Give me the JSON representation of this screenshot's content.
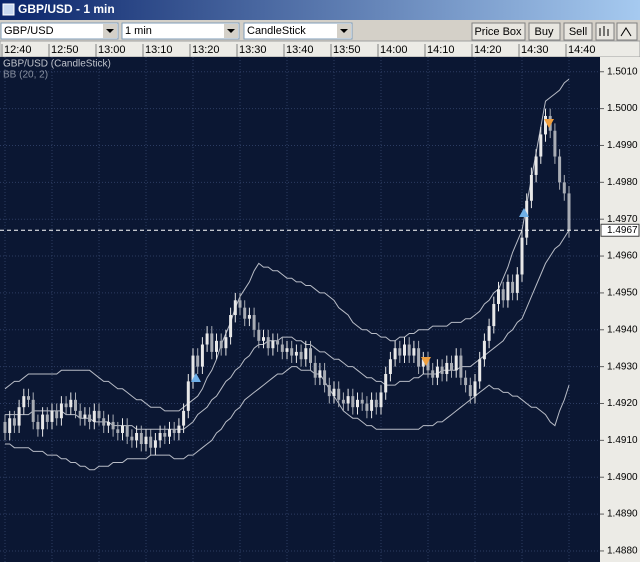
{
  "window": {
    "title": "GBP/USD - 1 min",
    "symbol": "GBP/USD",
    "interval": "1 min",
    "chart_style": "CandleStick",
    "buttons": [
      "Price Box",
      "Buy",
      "Sell"
    ]
  },
  "chart_data": {
    "type": "candlestick",
    "title": "GBP/USD (CandleStick)",
    "indicator": "BB (20, 2)",
    "categories": [
      "12:40",
      null,
      null,
      null,
      null,
      null,
      null,
      null,
      null,
      null,
      "12:50",
      null,
      null,
      null,
      null,
      null,
      null,
      null,
      null,
      null,
      "13:00",
      null,
      null,
      null,
      null,
      null,
      null,
      null,
      null,
      null,
      "13:10",
      null,
      null,
      null,
      null,
      null,
      null,
      null,
      null,
      null,
      "13:20",
      null,
      null,
      null,
      null,
      null,
      null,
      null,
      null,
      null,
      "13:30",
      null,
      null,
      null,
      null,
      null,
      null,
      null,
      null,
      null,
      "13:40",
      null,
      null,
      null,
      null,
      null,
      null,
      null,
      null,
      null,
      "13:50",
      null,
      null,
      null,
      null,
      null,
      null,
      null,
      null,
      null,
      "14:00",
      null,
      null,
      null,
      null,
      null,
      null,
      null,
      null,
      null,
      "14:10",
      null,
      null,
      null,
      null,
      null,
      null,
      null,
      null,
      null,
      "14:20",
      null,
      null,
      null,
      null,
      null,
      null,
      null,
      null,
      null,
      "14:30",
      null,
      null,
      null,
      null,
      null,
      null,
      null,
      null,
      null,
      "14:40"
    ],
    "open": [
      1.4915,
      1.4912,
      1.4916,
      1.4914,
      1.4919,
      1.4922,
      1.4921,
      1.4915,
      1.4913,
      1.4917,
      1.4915,
      1.4918,
      1.4916,
      1.492,
      1.4919,
      1.4921,
      1.4918,
      1.4916,
      1.4917,
      1.4915,
      1.4918,
      1.4916,
      1.4914,
      1.4915,
      1.4913,
      1.4912,
      1.4914,
      1.4911,
      1.491,
      1.4912,
      1.4909,
      1.4911,
      1.4908,
      1.491,
      1.4912,
      1.4911,
      1.4913,
      1.4912,
      1.4914,
      1.4918,
      1.4926,
      1.4933,
      1.493,
      1.4936,
      1.4939,
      1.4934,
      1.4937,
      1.4935,
      1.4938,
      1.4944,
      1.4948,
      1.4946,
      1.4943,
      1.4944,
      1.494,
      1.4937,
      1.4938,
      1.4935,
      1.4937,
      1.4936,
      1.4934,
      1.4935,
      1.4933,
      1.4934,
      1.4932,
      1.4935,
      1.4931,
      1.4927,
      1.4929,
      1.4925,
      1.4922,
      1.4924,
      1.4921,
      1.492,
      1.4922,
      1.4919,
      1.4921,
      1.492,
      1.4918,
      1.4921,
      1.4919,
      1.4923,
      1.4928,
      1.4932,
      1.4935,
      1.4933,
      1.4936,
      1.4933,
      1.4935,
      1.493,
      1.4932,
      1.4929,
      1.4927,
      1.493,
      1.4928,
      1.4931,
      1.4929,
      1.4933,
      1.4927,
      1.4925,
      1.4922,
      1.4926,
      1.4932,
      1.4937,
      1.4941,
      1.4947,
      1.4951,
      1.4948,
      1.4953,
      1.495,
      1.4955,
      1.4965,
      1.4975,
      1.4982,
      1.4987,
      1.4993,
      1.4998,
      1.4994,
      1.4987,
      1.498,
      1.4977
    ],
    "high": [
      1.4917,
      1.4918,
      1.4918,
      1.4921,
      1.4924,
      1.4924,
      1.4923,
      1.4917,
      1.4919,
      1.4919,
      1.492,
      1.492,
      1.4922,
      1.4922,
      1.4923,
      1.4923,
      1.492,
      1.4919,
      1.4919,
      1.492,
      1.492,
      1.4918,
      1.4917,
      1.4917,
      1.4915,
      1.4916,
      1.4916,
      1.4913,
      1.4914,
      1.4914,
      1.4913,
      1.4913,
      1.4912,
      1.4914,
      1.4914,
      1.4915,
      1.4915,
      1.4916,
      1.492,
      1.4928,
      1.4935,
      1.4935,
      1.4938,
      1.4941,
      1.4941,
      1.4939,
      1.4939,
      1.494,
      1.4946,
      1.495,
      1.495,
      1.4948,
      1.4946,
      1.4946,
      1.4942,
      1.494,
      1.494,
      1.4939,
      1.4939,
      1.4938,
      1.4937,
      1.4937,
      1.4936,
      1.4936,
      1.4937,
      1.4937,
      1.4933,
      1.4931,
      1.4931,
      1.4927,
      1.4926,
      1.4926,
      1.4923,
      1.4924,
      1.4924,
      1.4923,
      1.4923,
      1.4922,
      1.4923,
      1.4923,
      1.4925,
      1.493,
      1.4934,
      1.4937,
      1.4937,
      1.4938,
      1.4938,
      1.4937,
      1.4937,
      1.4934,
      1.4934,
      1.4931,
      1.4932,
      1.4932,
      1.4933,
      1.4933,
      1.4935,
      1.4935,
      1.4929,
      1.4927,
      1.4928,
      1.4934,
      1.4939,
      1.4943,
      1.4949,
      1.4953,
      1.4953,
      1.4955,
      1.4955,
      1.4957,
      1.4967,
      1.4977,
      1.4984,
      1.4989,
      1.4995,
      1.5,
      1.5,
      1.4996,
      1.4989,
      1.4982,
      1.4979
    ],
    "low": [
      1.491,
      1.491,
      1.4912,
      1.4912,
      1.4917,
      1.4919,
      1.4913,
      1.4911,
      1.4911,
      1.4913,
      1.4913,
      1.4914,
      1.4914,
      1.4917,
      1.4917,
      1.4916,
      1.4914,
      1.4914,
      1.4913,
      1.4913,
      1.4914,
      1.4912,
      1.4912,
      1.4911,
      1.491,
      1.491,
      1.4909,
      1.4908,
      1.4908,
      1.4907,
      1.4907,
      1.4906,
      1.4906,
      1.4908,
      1.4909,
      1.4909,
      1.491,
      1.491,
      1.4912,
      1.4916,
      1.4924,
      1.4928,
      1.4928,
      1.4934,
      1.4932,
      1.4932,
      1.4933,
      1.4933,
      1.4936,
      1.4942,
      1.4944,
      1.4941,
      1.4941,
      1.4938,
      1.4935,
      1.4935,
      1.4933,
      1.4933,
      1.4934,
      1.4932,
      1.4932,
      1.4931,
      1.4931,
      1.493,
      1.493,
      1.4929,
      1.4925,
      1.4925,
      1.4923,
      1.492,
      1.492,
      1.4919,
      1.4918,
      1.4918,
      1.4917,
      1.4917,
      1.4918,
      1.4916,
      1.4916,
      1.4917,
      1.4917,
      1.4921,
      1.4926,
      1.493,
      1.4931,
      1.4931,
      1.4931,
      1.4931,
      1.4928,
      1.4928,
      1.4927,
      1.4925,
      1.4925,
      1.4926,
      1.4926,
      1.4927,
      1.4927,
      1.4925,
      1.4923,
      1.492,
      1.492,
      1.4924,
      1.493,
      1.4935,
      1.4939,
      1.4945,
      1.4946,
      1.4946,
      1.4948,
      1.4948,
      1.4953,
      1.4963,
      1.4973,
      1.498,
      1.4985,
      1.4991,
      1.4992,
      1.4985,
      1.4978,
      1.4975,
      1.4965
    ],
    "close": [
      1.4912,
      1.4916,
      1.4914,
      1.4919,
      1.4922,
      1.4921,
      1.4915,
      1.4913,
      1.4917,
      1.4915,
      1.4918,
      1.4916,
      1.492,
      1.4919,
      1.4921,
      1.4918,
      1.4916,
      1.4917,
      1.4915,
      1.4918,
      1.4916,
      1.4914,
      1.4915,
      1.4913,
      1.4912,
      1.4914,
      1.4911,
      1.491,
      1.4912,
      1.4909,
      1.4911,
      1.4908,
      1.491,
      1.4912,
      1.4911,
      1.4913,
      1.4912,
      1.4914,
      1.4918,
      1.4926,
      1.4933,
      1.493,
      1.4936,
      1.4939,
      1.4934,
      1.4937,
      1.4935,
      1.4938,
      1.4944,
      1.4948,
      1.4946,
      1.4943,
      1.4944,
      1.494,
      1.4937,
      1.4938,
      1.4935,
      1.4937,
      1.4936,
      1.4934,
      1.4935,
      1.4933,
      1.4934,
      1.4932,
      1.4935,
      1.4931,
      1.4927,
      1.4929,
      1.4925,
      1.4922,
      1.4924,
      1.4921,
      1.492,
      1.4922,
      1.4919,
      1.4921,
      1.492,
      1.4918,
      1.4921,
      1.4919,
      1.4923,
      1.4928,
      1.4932,
      1.4935,
      1.4933,
      1.4936,
      1.4933,
      1.4935,
      1.493,
      1.4932,
      1.4929,
      1.4927,
      1.493,
      1.4928,
      1.4931,
      1.4929,
      1.4933,
      1.4927,
      1.4925,
      1.4922,
      1.4926,
      1.4932,
      1.4937,
      1.4941,
      1.4947,
      1.4951,
      1.4948,
      1.4953,
      1.495,
      1.4955,
      1.4965,
      1.4975,
      1.4982,
      1.4987,
      1.4993,
      1.4998,
      1.4994,
      1.4987,
      1.498,
      1.4977,
      1.4967
    ],
    "bollinger": {
      "color": "#b8bcc6",
      "upper": [
        1.4924,
        1.4925,
        1.4926,
        1.4926,
        1.4927,
        1.4928,
        1.4928,
        1.4928,
        1.4928,
        1.4928,
        1.4928,
        1.4928,
        1.4929,
        1.4929,
        1.4929,
        1.4929,
        1.4929,
        1.4929,
        1.4929,
        1.4928,
        1.4927,
        1.4926,
        1.4926,
        1.4925,
        1.4924,
        1.4924,
        1.4923,
        1.4922,
        1.4921,
        1.4921,
        1.492,
        1.4919,
        1.4919,
        1.4919,
        1.4918,
        1.4918,
        1.4918,
        1.4918,
        1.4919,
        1.492,
        1.4921,
        1.4922,
        1.4924,
        1.4927,
        1.4929,
        1.4932,
        1.4936,
        1.4939,
        1.4942,
        1.4946,
        1.4949,
        1.4951,
        1.4953,
        1.4956,
        1.4958,
        1.4957,
        1.4957,
        1.4956,
        1.4956,
        1.4955,
        1.4954,
        1.4954,
        1.4953,
        1.4953,
        1.4952,
        1.4952,
        1.4951,
        1.495,
        1.495,
        1.4949,
        1.4948,
        1.4946,
        1.4945,
        1.4944,
        1.4942,
        1.4941,
        1.494,
        1.494,
        1.4939,
        1.4939,
        1.4938,
        1.4938,
        1.4937,
        1.4937,
        1.4938,
        1.4938,
        1.4939,
        1.4939,
        1.494,
        1.494,
        1.494,
        1.4941,
        1.4941,
        1.4941,
        1.4941,
        1.4942,
        1.4942,
        1.4942,
        1.4943,
        1.4943,
        1.4944,
        1.4945,
        1.4947,
        1.4948,
        1.495,
        1.4951,
        1.4954,
        1.4957,
        1.4961,
        1.4964,
        1.4967,
        1.4974,
        1.4981,
        1.4988,
        1.4995,
        1.5002,
        1.5003,
        1.5004,
        1.5005,
        1.5007,
        1.5008
      ],
      "middle": [
        1.4917,
        1.4917,
        1.4917,
        1.4917,
        1.4917,
        1.4917,
        1.4918,
        1.4918,
        1.4918,
        1.4918,
        1.4918,
        1.4918,
        1.4918,
        1.4917,
        1.4917,
        1.4917,
        1.4916,
        1.4916,
        1.4916,
        1.4915,
        1.4915,
        1.4915,
        1.4915,
        1.4914,
        1.4914,
        1.4914,
        1.4914,
        1.4914,
        1.4913,
        1.4913,
        1.4913,
        1.4913,
        1.4913,
        1.4913,
        1.4913,
        1.4913,
        1.4913,
        1.4913,
        1.4913,
        1.4914,
        1.4915,
        1.4917,
        1.4918,
        1.4919,
        1.4921,
        1.4922,
        1.4924,
        1.4926,
        1.4927,
        1.4929,
        1.493,
        1.4932,
        1.4933,
        1.4935,
        1.4936,
        1.4936,
        1.4937,
        1.4937,
        1.4937,
        1.4938,
        1.4938,
        1.4938,
        1.4937,
        1.4937,
        1.4936,
        1.4936,
        1.4935,
        1.4934,
        1.4934,
        1.4933,
        1.4932,
        1.4932,
        1.4931,
        1.493,
        1.493,
        1.4929,
        1.4928,
        1.4927,
        1.4927,
        1.4926,
        1.4926,
        1.4925,
        1.4925,
        1.4925,
        1.4926,
        1.4926,
        1.4926,
        1.4927,
        1.4927,
        1.4928,
        1.4928,
        1.4928,
        1.4928,
        1.4929,
        1.4929,
        1.4929,
        1.4929,
        1.493,
        1.493,
        1.493,
        1.4931,
        1.4932,
        1.4933,
        1.4934,
        1.4935,
        1.4936,
        1.4937,
        1.4939,
        1.494,
        1.4942,
        1.4943,
        1.4946,
        1.4949,
        1.4952,
        1.4955,
        1.4958,
        1.496,
        1.4962,
        1.4963,
        1.4965,
        1.4967
      ],
      "lower": [
        1.4909,
        1.4909,
        1.4908,
        1.4908,
        1.4908,
        1.4908,
        1.4907,
        1.4907,
        1.4907,
        1.4906,
        1.4906,
        1.4906,
        1.4905,
        1.4905,
        1.4904,
        1.4904,
        1.4903,
        1.4903,
        1.4902,
        1.4902,
        1.4903,
        1.4903,
        1.4903,
        1.4904,
        1.4904,
        1.4904,
        1.4905,
        1.4905,
        1.4905,
        1.4905,
        1.4905,
        1.4906,
        1.4906,
        1.4906,
        1.4906,
        1.4906,
        1.4905,
        1.4905,
        1.4905,
        1.4906,
        1.4906,
        1.4907,
        1.4908,
        1.4909,
        1.491,
        1.4912,
        1.4913,
        1.4915,
        1.4916,
        1.4918,
        1.4919,
        1.4921,
        1.4922,
        1.4923,
        1.4924,
        1.4925,
        1.4926,
        1.4927,
        1.4928,
        1.4928,
        1.4929,
        1.493,
        1.493,
        1.4929,
        1.4929,
        1.4929,
        1.4928,
        1.4928,
        1.4926,
        1.4924,
        1.4922,
        1.492,
        1.4918,
        1.4917,
        1.4916,
        1.4916,
        1.4915,
        1.4914,
        1.4914,
        1.4913,
        1.4913,
        1.4913,
        1.4913,
        1.4913,
        1.4913,
        1.4913,
        1.4913,
        1.4913,
        1.4913,
        1.4914,
        1.4914,
        1.4914,
        1.4915,
        1.4915,
        1.4916,
        1.4917,
        1.4918,
        1.4919,
        1.492,
        1.4921,
        1.4922,
        1.4923,
        1.4924,
        1.4925,
        1.4924,
        1.4924,
        1.4923,
        1.4923,
        1.4922,
        1.4922,
        1.4921,
        1.492,
        1.4919,
        1.4919,
        1.4918,
        1.4917,
        1.4915,
        1.4914,
        1.4918,
        1.4921,
        1.4925
      ]
    },
    "up_color": "#e8e8e8",
    "down_color": "#a8acb4",
    "current_price": 1.4967,
    "ylim": [
      1.4877,
      1.5014
    ],
    "yticks": [
      {
        "value": 1.501,
        "label": "1.5010"
      },
      {
        "value": 1.5,
        "label": "1.5000"
      },
      {
        "value": 1.499,
        "label": "1.4990"
      },
      {
        "value": 1.498,
        "label": "1.4980"
      },
      {
        "value": 1.497,
        "label": "1.4970"
      },
      {
        "value": 1.496,
        "label": "1.4960"
      },
      {
        "value": 1.495,
        "label": "1.4950"
      },
      {
        "value": 1.494,
        "label": "1.4940"
      },
      {
        "value": 1.493,
        "label": "1.4930"
      },
      {
        "value": 1.492,
        "label": "1.4920"
      },
      {
        "value": 1.491,
        "label": "1.4910"
      },
      {
        "value": 1.49,
        "label": "1.4900"
      },
      {
        "value": 1.489,
        "label": "1.4890"
      },
      {
        "value": 1.488,
        "label": "1.4880"
      }
    ],
    "grid": true
  }
}
